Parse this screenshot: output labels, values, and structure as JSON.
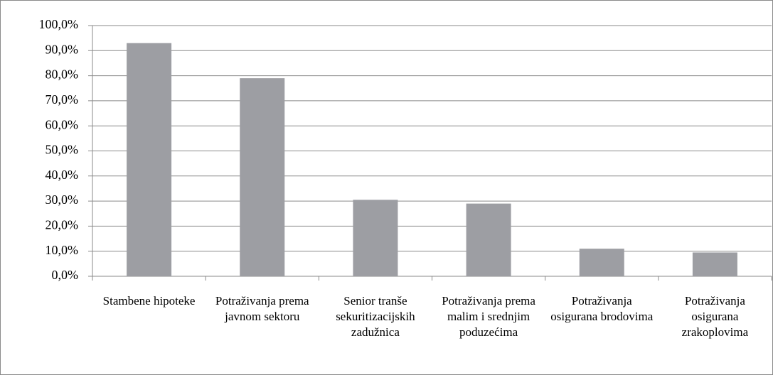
{
  "chart_data": {
    "type": "bar",
    "categories": [
      "Stambene hipoteke",
      "Potraživanja prema javnom sektoru",
      "Senior tranše sekuritizacijskih zadužnica",
      "Potraživanja prema malim i srednjim poduzećima",
      "Potraživanja osigurana brodovima",
      "Potraživanja osigurana zrakoplovima"
    ],
    "values": [
      93.0,
      79.0,
      30.5,
      29.0,
      11.0,
      9.5
    ],
    "color": "#9d9ea3",
    "ylim": [
      0,
      100
    ],
    "yticks": [
      {
        "value": 0,
        "label": "0,0%"
      },
      {
        "value": 10,
        "label": "10,0%"
      },
      {
        "value": 20,
        "label": "20,0%"
      },
      {
        "value": 30,
        "label": "30,0%"
      },
      {
        "value": 40,
        "label": "40,0%"
      },
      {
        "value": 50,
        "label": "50,0%"
      },
      {
        "value": 60,
        "label": "60,0%"
      },
      {
        "value": 70,
        "label": "70,0%"
      },
      {
        "value": 80,
        "label": "80,0%"
      },
      {
        "value": 90,
        "label": "90,0%"
      },
      {
        "value": 100,
        "label": "100,0%"
      }
    ],
    "grid": true
  }
}
